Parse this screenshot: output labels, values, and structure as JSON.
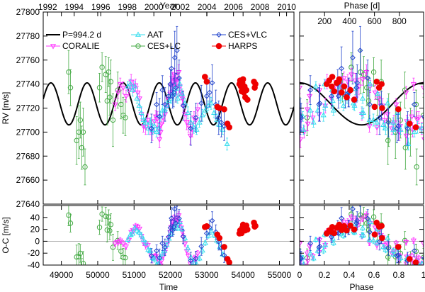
{
  "chart_data": {
    "type": "scatter",
    "colors": {
      "model": "#000000",
      "CORALIE": "#ff33ff",
      "AAT": "#33ddee",
      "CES+LC": "#44aa44",
      "CES+VLC": "#2244cc",
      "HARPS": "#ee0000",
      "zero_line": "#999999"
    },
    "top_axis_left": {
      "label": "Year",
      "ticks": [
        "1992",
        "1994",
        "1996",
        "1998",
        "2000",
        "2002",
        "2004",
        "2006",
        "2008",
        "2010"
      ],
      "tick_values": [
        1992,
        1994,
        1996,
        1998,
        2000,
        2002,
        2004,
        2006,
        2008,
        2010
      ]
    },
    "top_axis_right": {
      "label": "Phase [d]",
      "ticks": [
        "200",
        "400",
        "600",
        "800"
      ],
      "tick_values": [
        200,
        400,
        600,
        800
      ],
      "period": 994.2
    },
    "left_panel": {
      "xlabel": "Time",
      "xlim": [
        48500,
        55400
      ],
      "xticks": [
        "49000",
        "50000",
        "51000",
        "52000",
        "53000",
        "54000",
        "55000"
      ],
      "xtick_values": [
        49000,
        50000,
        51000,
        52000,
        53000,
        54000,
        55000
      ]
    },
    "right_panel": {
      "xlabel": "Phase",
      "xlim": [
        0,
        1
      ],
      "xticks": [
        "0",
        "0.2",
        "0.4",
        "0.6",
        "0.8",
        "1"
      ],
      "xtick_values": [
        0,
        0.2,
        0.4,
        0.6,
        0.8,
        1
      ]
    },
    "rv_axis": {
      "ylabel": "RV [m/s]",
      "ylim": [
        27640,
        27800
      ],
      "ticks": [
        "27640",
        "27660",
        "27680",
        "27700",
        "27720",
        "27740",
        "27760",
        "27780",
        "27800"
      ],
      "tick_values": [
        27640,
        27660,
        27680,
        27700,
        27720,
        27740,
        27760,
        27780,
        27800
      ]
    },
    "oc_axis": {
      "ylabel": "O-C [m/s]",
      "ylim": [
        -40,
        60
      ],
      "ticks": [
        "-40",
        "-20",
        "0",
        "20",
        "40"
      ],
      "tick_values": [
        -40,
        -20,
        0,
        20,
        40
      ]
    },
    "model": {
      "name": "P=994.2 d",
      "period": 994.2,
      "amplitude": 17.5,
      "offset": 27723.5,
      "t_peak": 50700
    },
    "legend": [
      "P=994.2 d",
      "AAT",
      "CES+VLC",
      "CORALIE",
      "CES+LC",
      "HARPS"
    ],
    "series": [
      {
        "name": "CES+LC",
        "marker": "circle",
        "t": [
          49200,
          49250,
          49420,
          49480,
          49520,
          49560,
          49600,
          49650,
          50050,
          50120,
          50220,
          50260,
          50300,
          50330,
          50360,
          50420,
          50550,
          50640,
          50700,
          50760
        ],
        "rv": [
          27750,
          27737,
          27693,
          27700,
          27710,
          27687,
          27700,
          27671,
          27737,
          27754,
          27748,
          27726,
          27750,
          27729,
          27742,
          27710,
          27735,
          27723,
          27714,
          27712
        ],
        "err": [
          18,
          15,
          20,
          22,
          15,
          18,
          20,
          15,
          12,
          12,
          15,
          20,
          12,
          15,
          18,
          22,
          15,
          12,
          15,
          15
        ]
      },
      {
        "name": "CORALIE",
        "marker": "triangle-down",
        "t": [
          50480,
          50560,
          50620,
          50700,
          50780,
          50860,
          50920,
          50980,
          51040,
          51100,
          51150,
          51200,
          51260,
          51320,
          51380,
          51440,
          51500,
          51560,
          51600,
          51640,
          51680,
          51700,
          51730,
          51760,
          51800,
          51850,
          51900,
          51950,
          52000,
          52020,
          52050,
          52080,
          52110,
          52140,
          52170,
          52200,
          52230,
          52260,
          52300,
          52330,
          52360,
          52400,
          52450,
          52500,
          52550,
          52600,
          52650,
          52700,
          52750
        ],
        "rv": [
          27723,
          27733,
          27740,
          27737,
          27730,
          27735,
          27742,
          27738,
          27739,
          27733,
          27728,
          27715,
          27705,
          27704,
          27710,
          27703,
          27700,
          27709,
          27713,
          27711,
          27703,
          27694,
          27700,
          27707,
          27712,
          27715,
          27722,
          27728,
          27733,
          27739,
          27745,
          27742,
          27748,
          27743,
          27738,
          27744,
          27750,
          27738,
          27733,
          27728,
          27722,
          27715,
          27708,
          27705,
          27697,
          27702,
          27712,
          27710,
          27719
        ],
        "err": [
          5,
          5,
          5,
          5,
          5,
          5,
          6,
          5,
          5,
          5,
          6,
          5,
          5,
          6,
          5,
          5,
          7,
          5,
          5,
          6,
          5,
          7,
          5,
          6,
          5,
          5,
          6,
          5,
          5,
          6,
          5,
          6,
          5,
          6,
          7,
          5,
          6,
          5,
          6,
          5,
          6,
          5,
          6,
          5,
          7,
          6,
          5,
          6,
          5
        ]
      },
      {
        "name": "AAT",
        "marker": "triangle-up",
        "t": [
          50830,
          50900,
          50960,
          51020,
          51080,
          51140,
          51200,
          51260,
          51320,
          51390,
          51450,
          51510,
          51560,
          51620,
          51680,
          51720,
          51780,
          51840,
          51900,
          51960,
          52020,
          52080,
          52140,
          52200,
          52260,
          52320,
          52400,
          52480,
          52560,
          52640,
          52720,
          52800,
          52880,
          52960,
          53040,
          53120,
          53200,
          53280,
          53360,
          53440,
          53560
        ],
        "rv": [
          27738,
          27740,
          27735,
          27738,
          27728,
          27722,
          27716,
          27710,
          27708,
          27703,
          27708,
          27702,
          27705,
          27700,
          27703,
          27713,
          27718,
          27718,
          27722,
          27726,
          27728,
          27732,
          27736,
          27728,
          27740,
          27732,
          27724,
          27716,
          27708,
          27704,
          27702,
          27708,
          27714,
          27718,
          27722,
          27724,
          27716,
          27710,
          27706,
          27702,
          27690
        ],
        "err": [
          4,
          4,
          5,
          4,
          4,
          4,
          5,
          4,
          4,
          5,
          4,
          4,
          5,
          4,
          4,
          4,
          5,
          4,
          4,
          5,
          4,
          4,
          5,
          4,
          5,
          4,
          4,
          5,
          4,
          5,
          4,
          4,
          5,
          4,
          4,
          5,
          4,
          5,
          4,
          4,
          5
        ]
      },
      {
        "name": "CES+VLC",
        "marker": "diamond",
        "t": [
          51480,
          51620,
          51700,
          51780,
          51850,
          51950,
          52000,
          52030,
          52060,
          52090,
          52120,
          52150,
          52180,
          52240,
          52350,
          52560,
          52700,
          52850,
          53000,
          53080,
          53150,
          53250,
          53330,
          53400,
          53480
        ],
        "rv": [
          27703,
          27723,
          27713,
          27735,
          27723,
          27730,
          27740,
          27753,
          27730,
          27733,
          27762,
          27737,
          27768,
          27745,
          27722,
          27703,
          27712,
          27724,
          27730,
          27733,
          27741,
          27723,
          27712,
          27708,
          27705
        ],
        "err": [
          12,
          10,
          15,
          12,
          14,
          10,
          12,
          18,
          10,
          12,
          22,
          12,
          20,
          15,
          12,
          14,
          12,
          15,
          10,
          12,
          15,
          12,
          14,
          12,
          12
        ]
      },
      {
        "name": "HARPS",
        "marker": "filled-circle",
        "t": [
          52950,
          53000,
          53290,
          53350,
          53480,
          53570,
          53620,
          53900,
          53920,
          53940,
          53960,
          53980,
          54000,
          54020,
          54040,
          54060,
          54090,
          54120,
          54300,
          54320,
          54340
        ],
        "rv": [
          27746,
          27742,
          27721,
          27720,
          27719,
          27707,
          27704,
          27740,
          27743,
          27738,
          27734,
          27741,
          27744,
          27733,
          27738,
          27729,
          27735,
          27727,
          27742,
          27737,
          27740
        ],
        "err": [
          2,
          2,
          2,
          2,
          2,
          2,
          2,
          2,
          2,
          2,
          2,
          2,
          2,
          2,
          2,
          2,
          2,
          2,
          2,
          2,
          2
        ]
      }
    ]
  }
}
